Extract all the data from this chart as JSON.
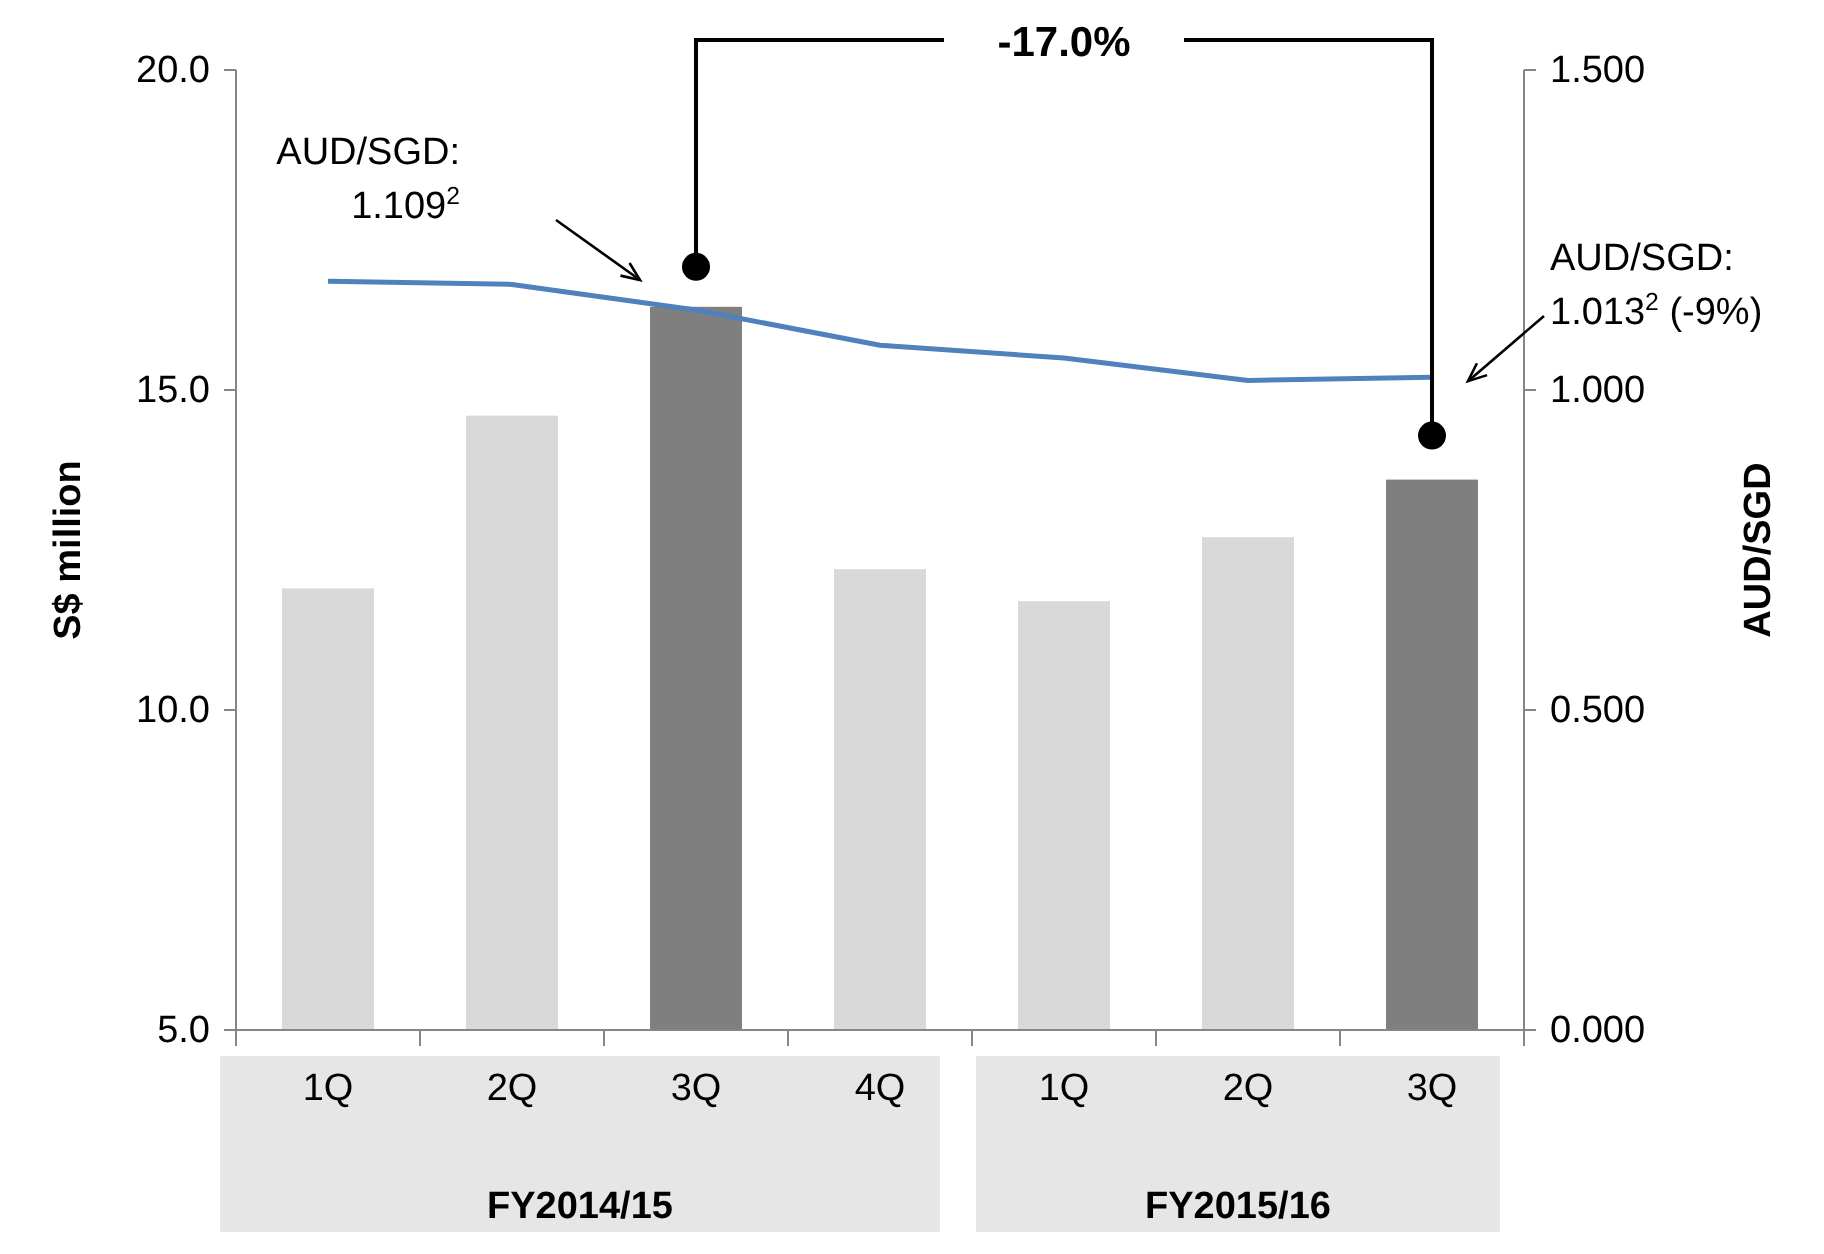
{
  "chart_data": {
    "type": "bar",
    "ylabel": "S$ million",
    "y2label": "AUD/SGD",
    "categories": [
      "1Q",
      "2Q",
      "3Q",
      "4Q",
      "1Q",
      "2Q",
      "3Q"
    ],
    "series": [
      {
        "colors": [
          "#d9d9d9",
          "#d9d9d9",
          "#7f7f7f",
          "#d9d9d9",
          "#d9d9d9",
          "#d9d9d9",
          "#7f7f7f"
        ],
        "values": [
          11.9,
          14.6,
          16.3,
          12.2,
          11.7,
          12.7,
          13.6
        ]
      },
      {
        "type": "line",
        "axis": "y2",
        "color": "#4f81bd",
        "values": [
          1.17,
          1.165,
          1.125,
          1.07,
          1.05,
          1.015,
          1.02
        ]
      }
    ],
    "ylim": [
      5,
      20
    ],
    "yticks": [
      {
        "value": 5,
        "label": "5.0"
      },
      {
        "value": 10,
        "label": "10.0"
      },
      {
        "value": 15,
        "label": "15.0"
      },
      {
        "value": 20,
        "label": "20.0"
      }
    ],
    "y2lim": [
      0,
      1.5
    ],
    "y2ticks": [
      {
        "value": 0,
        "label": "0.000"
      },
      {
        "value": 0.5,
        "label": "0.500"
      },
      {
        "value": 1,
        "label": "1.000"
      },
      {
        "value": 1.5,
        "label": "1.500"
      }
    ],
    "marker": "none",
    "annotations": [
      "-17.0%",
      "AUD/SGD: 1.109$^{2}$",
      "AUD/SGD: 1.013$^{2}$ (-9%)",
      "FY2014/15",
      "FY2015/16"
    ]
  }
}
